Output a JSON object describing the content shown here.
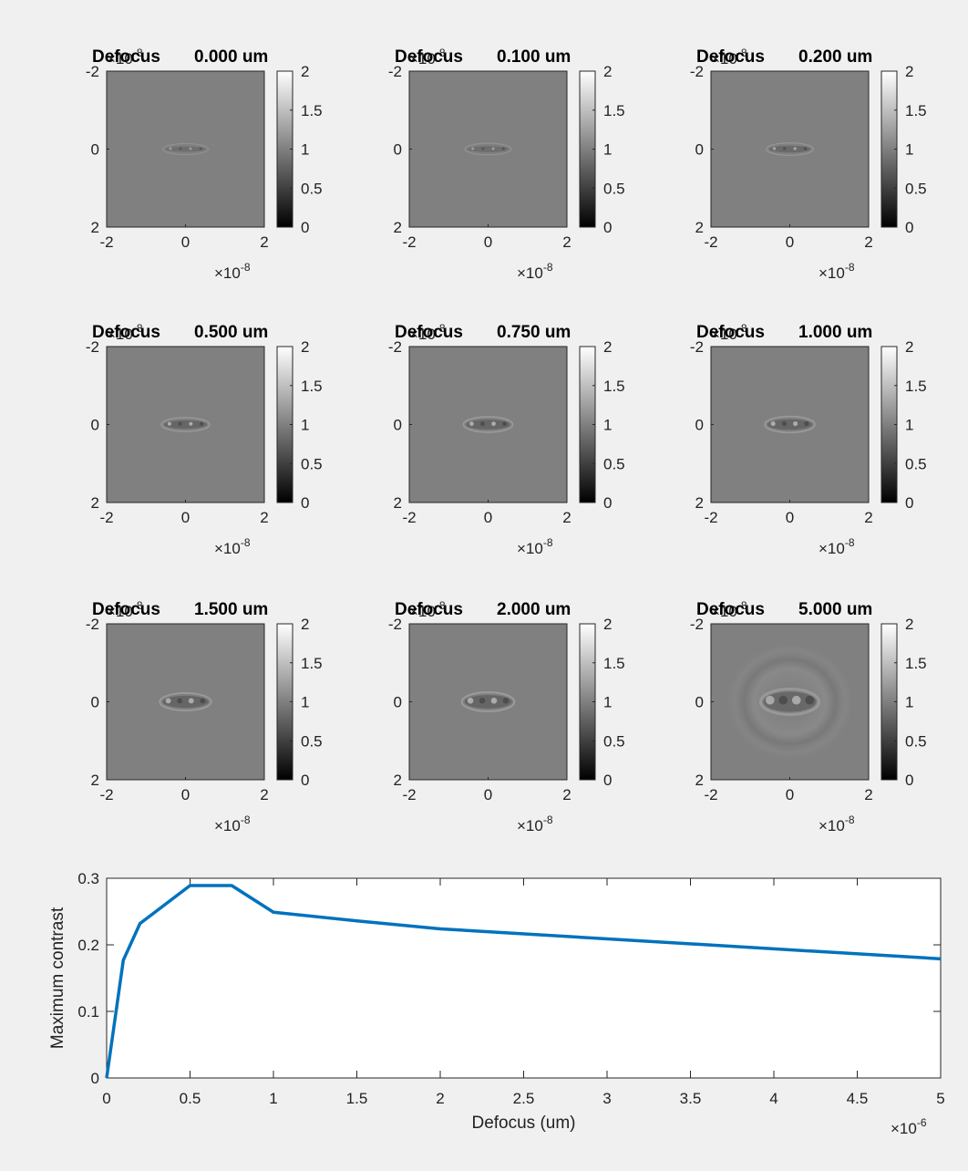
{
  "chart_data": [
    {
      "type": "heatmap",
      "title_label": "Defocus",
      "title_value": "0.000 um",
      "x_ticks": [
        "-2",
        "0",
        "2"
      ],
      "y_ticks": [
        "-2",
        "0",
        "2"
      ],
      "x_exponent": "×10",
      "x_exponent_power": "-8",
      "y_exponent": "×10",
      "y_exponent_power": "-8",
      "colorbar_ticks": [
        "2",
        "1.5",
        "1",
        "0.5",
        "0"
      ],
      "colorbar_range": [
        0,
        2
      ],
      "pattern_strength": 0.15,
      "pattern_spread": 0.0
    },
    {
      "type": "heatmap",
      "title_label": "Defocus",
      "title_value": "0.100 um",
      "x_ticks": [
        "-2",
        "0",
        "2"
      ],
      "y_ticks": [
        "-2",
        "0",
        "2"
      ],
      "x_exponent": "×10",
      "x_exponent_power": "-8",
      "y_exponent": "×10",
      "y_exponent_power": "-8",
      "colorbar_ticks": [
        "2",
        "1.5",
        "1",
        "0.5",
        "0"
      ],
      "colorbar_range": [
        0,
        2
      ],
      "pattern_strength": 0.2,
      "pattern_spread": 0.05
    },
    {
      "type": "heatmap",
      "title_label": "Defocus",
      "title_value": "0.200 um",
      "x_ticks": [
        "-2",
        "0",
        "2"
      ],
      "y_ticks": [
        "-2",
        "0",
        "2"
      ],
      "x_exponent": "×10",
      "x_exponent_power": "-8",
      "y_exponent": "×10",
      "y_exponent_power": "-8",
      "colorbar_ticks": [
        "2",
        "1.5",
        "1",
        "0.5",
        "0"
      ],
      "colorbar_range": [
        0,
        2
      ],
      "pattern_strength": 0.3,
      "pattern_spread": 0.1
    },
    {
      "type": "heatmap",
      "title_label": "Defocus",
      "title_value": "0.500 um",
      "x_ticks": [
        "-2",
        "0",
        "2"
      ],
      "y_ticks": [
        "-2",
        "0",
        "2"
      ],
      "x_exponent": "×10",
      "x_exponent_power": "-8",
      "y_exponent": "×10",
      "y_exponent_power": "-8",
      "colorbar_ticks": [
        "2",
        "1.5",
        "1",
        "0.5",
        "0"
      ],
      "colorbar_range": [
        0,
        2
      ],
      "pattern_strength": 0.4,
      "pattern_spread": 0.2
    },
    {
      "type": "heatmap",
      "title_label": "Defocus",
      "title_value": "0.750 um",
      "x_ticks": [
        "-2",
        "0",
        "2"
      ],
      "y_ticks": [
        "-2",
        "0",
        "2"
      ],
      "x_exponent": "×10",
      "x_exponent_power": "-8",
      "y_exponent": "×10",
      "y_exponent_power": "-8",
      "colorbar_ticks": [
        "2",
        "1.5",
        "1",
        "0.5",
        "0"
      ],
      "colorbar_range": [
        0,
        2
      ],
      "pattern_strength": 0.4,
      "pattern_spread": 0.3
    },
    {
      "type": "heatmap",
      "title_label": "Defocus",
      "title_value": "1.000 um",
      "x_ticks": [
        "-2",
        "0",
        "2"
      ],
      "y_ticks": [
        "-2",
        "0",
        "2"
      ],
      "x_exponent": "×10",
      "x_exponent_power": "-8",
      "y_exponent": "×10",
      "y_exponent_power": "-8",
      "colorbar_ticks": [
        "2",
        "1.5",
        "1",
        "0.5",
        "0"
      ],
      "colorbar_range": [
        0,
        2
      ],
      "pattern_strength": 0.4,
      "pattern_spread": 0.35
    },
    {
      "type": "heatmap",
      "title_label": "Defocus",
      "title_value": "1.500 um",
      "x_ticks": [
        "-2",
        "0",
        "2"
      ],
      "y_ticks": [
        "-2",
        "0",
        "2"
      ],
      "x_exponent": "×10",
      "x_exponent_power": "-8",
      "y_exponent": "×10",
      "y_exponent_power": "-8",
      "colorbar_ticks": [
        "2",
        "1.5",
        "1",
        "0.5",
        "0"
      ],
      "colorbar_range": [
        0,
        2
      ],
      "pattern_strength": 0.4,
      "pattern_spread": 0.45
    },
    {
      "type": "heatmap",
      "title_label": "Defocus",
      "title_value": "2.000 um",
      "x_ticks": [
        "-2",
        "0",
        "2"
      ],
      "y_ticks": [
        "-2",
        "0",
        "2"
      ],
      "x_exponent": "×10",
      "x_exponent_power": "-8",
      "y_exponent": "×10",
      "y_exponent_power": "-8",
      "colorbar_ticks": [
        "2",
        "1.5",
        "1",
        "0.5",
        "0"
      ],
      "colorbar_range": [
        0,
        2
      ],
      "pattern_strength": 0.4,
      "pattern_spread": 0.55
    },
    {
      "type": "heatmap",
      "title_label": "Defocus",
      "title_value": "5.000 um",
      "x_ticks": [
        "-2",
        "0",
        "2"
      ],
      "y_ticks": [
        "-2",
        "0",
        "2"
      ],
      "x_exponent": "×10",
      "x_exponent_power": "-8",
      "y_exponent": "×10",
      "y_exponent_power": "-8",
      "colorbar_ticks": [
        "2",
        "1.5",
        "1",
        "0.5",
        "0"
      ],
      "colorbar_range": [
        0,
        2
      ],
      "pattern_strength": 0.35,
      "pattern_spread": 1.0
    },
    {
      "type": "line",
      "xlabel": "Defocus (um)",
      "ylabel": "Maximum contrast",
      "xlim": [
        0,
        5
      ],
      "ylim": [
        0,
        0.3
      ],
      "x_ticks": [
        0,
        0.5,
        1,
        1.5,
        2,
        2.5,
        3,
        3.5,
        4,
        4.5,
        5
      ],
      "y_ticks": [
        0,
        0.1,
        0.2,
        0.3
      ],
      "x_exponent": "×10",
      "x_exponent_power": "-6",
      "grid": false,
      "line_color": "#0072bd",
      "series": [
        {
          "x": [
            0,
            0.1,
            0.2,
            0.5,
            0.75,
            1.0,
            1.5,
            2.0,
            5.0
          ],
          "y": [
            0.0,
            0.177,
            0.232,
            0.289,
            0.289,
            0.249,
            0.236,
            0.224,
            0.179
          ]
        }
      ]
    }
  ]
}
